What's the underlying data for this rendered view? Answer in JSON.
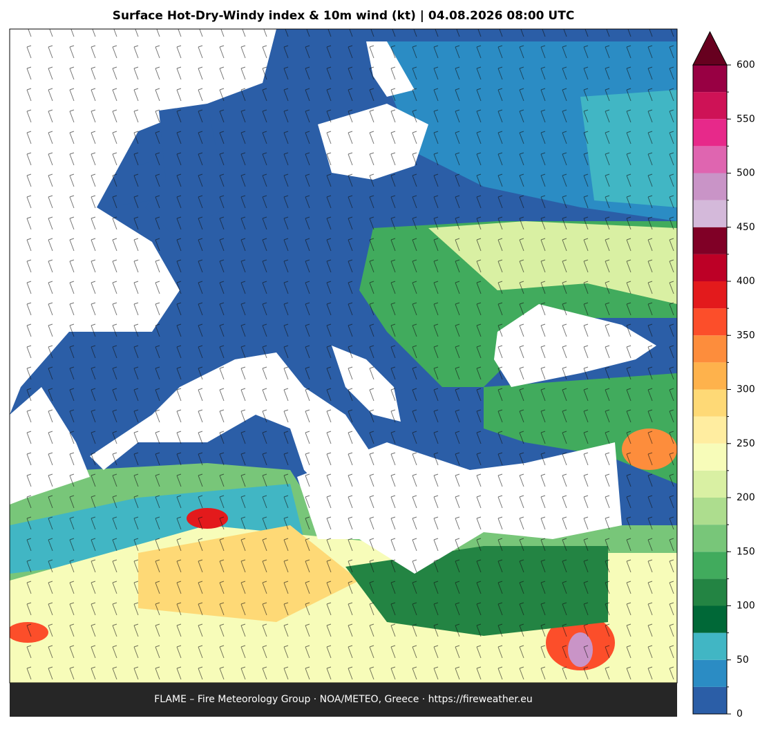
{
  "title": "Surface Hot-Dry-Windy index & 10m wind (kt)  |  04.08.2026 08:00 UTC",
  "footer": "FLAME – Fire Meteorology Group · NOA/METEO, Greece · https://fireweather.eu",
  "colorbar": {
    "lim": [
      0,
      600
    ],
    "ticks": [
      0,
      50,
      100,
      150,
      200,
      250,
      300,
      350,
      400,
      450,
      500,
      550,
      600
    ],
    "levels": [
      0,
      25,
      50,
      75,
      100,
      125,
      150,
      175,
      200,
      225,
      250,
      275,
      300,
      325,
      350,
      375,
      400,
      425,
      450,
      475,
      500,
      525,
      550,
      575,
      600
    ],
    "colors": [
      "#2b5ea7",
      "#2b8cc4",
      "#41b6c4",
      "#006837",
      "#238443",
      "#41ab5d",
      "#78c679",
      "#addd8e",
      "#d9f0a3",
      "#f7fcb9",
      "#ffeda0",
      "#fed976",
      "#feb24c",
      "#fd8d3c",
      "#fc4e2a",
      "#e31a1c",
      "#bd0026",
      "#800026",
      "#d4b9da",
      "#c994c7",
      "#df65b0",
      "#e7298a",
      "#ce1256",
      "#980043"
    ],
    "extend_color": "#67001f"
  }
}
